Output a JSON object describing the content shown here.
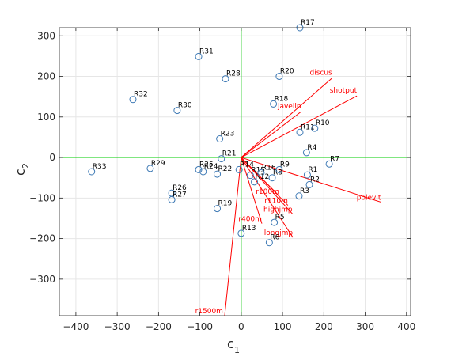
{
  "chart_data": {
    "type": "scatter",
    "title": "",
    "xlabel": {
      "main": "c",
      "sub": "1"
    },
    "ylabel": {
      "main": "c",
      "sub": "2"
    },
    "xlim": [
      -440,
      410
    ],
    "ylim": [
      -390,
      320
    ],
    "xticks": [
      -400,
      -300,
      -200,
      -100,
      0,
      100,
      200,
      300,
      400
    ],
    "yticks": [
      300,
      200,
      100,
      0,
      -100,
      -200,
      -300
    ],
    "grid": true,
    "colors": {
      "points": "#3c78b4",
      "vectors": "#ff0000",
      "zero_lines": "#00cc00",
      "grid": "#e6e6e6",
      "axes": "#262626"
    },
    "points": [
      {
        "label": "R1",
        "x": 160,
        "y": -43
      },
      {
        "label": "R2",
        "x": 165,
        "y": -67
      },
      {
        "label": "R3",
        "x": 140,
        "y": -95
      },
      {
        "label": "R4",
        "x": 158,
        "y": 12
      },
      {
        "label": "R5",
        "x": 80,
        "y": -160
      },
      {
        "label": "R6",
        "x": 68,
        "y": -210
      },
      {
        "label": "R7",
        "x": 213,
        "y": -16
      },
      {
        "label": "R8",
        "x": 75,
        "y": -50
      },
      {
        "label": "R9",
        "x": 92,
        "y": -30
      },
      {
        "label": "R10",
        "x": 178,
        "y": 72
      },
      {
        "label": "R11",
        "x": 142,
        "y": 62
      },
      {
        "label": "R12",
        "x": 32,
        "y": -60
      },
      {
        "label": "R13",
        "x": 0,
        "y": -187
      },
      {
        "label": "R14",
        "x": -5,
        "y": -30
      },
      {
        "label": "R15",
        "x": 22,
        "y": -44
      },
      {
        "label": "R16",
        "x": 48,
        "y": -38
      },
      {
        "label": "R17",
        "x": 142,
        "y": 320
      },
      {
        "label": "R18",
        "x": 78,
        "y": 132
      },
      {
        "label": "R19",
        "x": -58,
        "y": -126
      },
      {
        "label": "R20",
        "x": 92,
        "y": 200
      },
      {
        "label": "R21",
        "x": -48,
        "y": -3
      },
      {
        "label": "R22",
        "x": -58,
        "y": -41
      },
      {
        "label": "R23",
        "x": -52,
        "y": 46
      },
      {
        "label": "R24",
        "x": -92,
        "y": -35
      },
      {
        "label": "R25",
        "x": -103,
        "y": -30
      },
      {
        "label": "R26",
        "x": -168,
        "y": -88
      },
      {
        "label": "R27",
        "x": -168,
        "y": -104
      },
      {
        "label": "R28",
        "x": -38,
        "y": 194
      },
      {
        "label": "R29",
        "x": -220,
        "y": -27
      },
      {
        "label": "R30",
        "x": -155,
        "y": 116
      },
      {
        "label": "R31",
        "x": -103,
        "y": 249
      },
      {
        "label": "R32",
        "x": -262,
        "y": 143
      },
      {
        "label": "R33",
        "x": -362,
        "y": -35
      }
    ],
    "vectors": [
      {
        "label": "discus",
        "x": 220,
        "y": 196
      },
      {
        "label": "shotput",
        "x": 280,
        "y": 152
      },
      {
        "label": "javelin",
        "x": 145,
        "y": 113
      },
      {
        "label": "polevlt",
        "x": 338,
        "y": -110
      },
      {
        "label": "r100m",
        "x": 92,
        "y": -95
      },
      {
        "label": "r110m",
        "x": 113,
        "y": -118
      },
      {
        "label": "highjmp",
        "x": 124,
        "y": -139
      },
      {
        "label": "longjmp",
        "x": 125,
        "y": -197
      },
      {
        "label": "r400m",
        "x": 50,
        "y": -163
      },
      {
        "label": "r1500m",
        "x": -40,
        "y": -390
      }
    ]
  }
}
